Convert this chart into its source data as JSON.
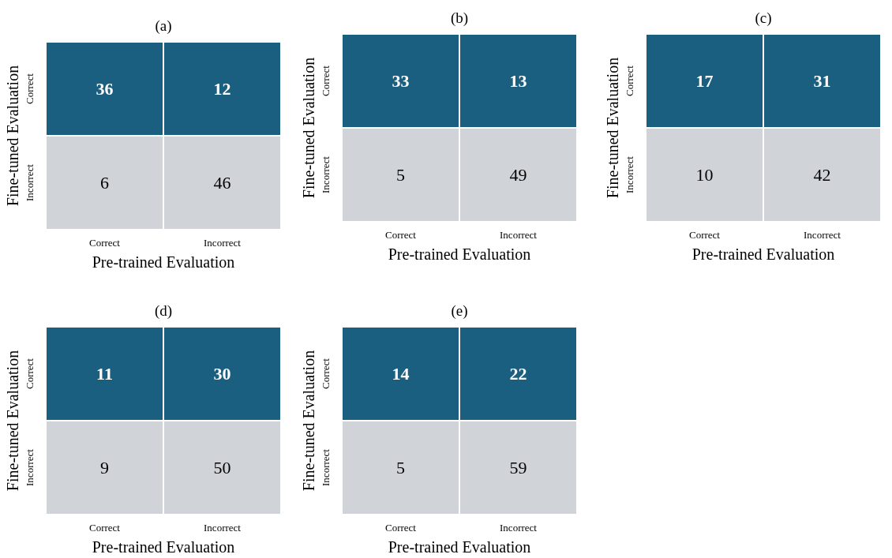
{
  "chart_data": [
    {
      "type": "heatmap",
      "title": "(a)",
      "xlabel": "Pre-trained Evaluation",
      "ylabel": "Fine-tuned Evaluation",
      "categories": [
        "Correct",
        "Incorrect"
      ],
      "y_categories": [
        "Correct",
        "Incorrect"
      ],
      "cells": [
        [
          36,
          12
        ],
        [
          6,
          46
        ]
      ],
      "colors": [
        "#1a5e80",
        "#d0d4d9"
      ],
      "data_labels": true
    },
    {
      "type": "heatmap",
      "title": "(b)",
      "xlabel": "Pre-trained Evaluation",
      "ylabel": "Fine-tuned Evaluation",
      "categories": [
        "Correct",
        "Incorrect"
      ],
      "y_categories": [
        "Correct",
        "Incorrect"
      ],
      "cells": [
        [
          33,
          13
        ],
        [
          5,
          49
        ]
      ],
      "colors": [
        "#1a5e80",
        "#d0d4d9"
      ],
      "data_labels": true
    },
    {
      "type": "heatmap",
      "title": "(c)",
      "xlabel": "Pre-trained Evaluation",
      "ylabel": "Fine-tuned Evaluation",
      "categories": [
        "Correct",
        "Incorrect"
      ],
      "y_categories": [
        "Correct",
        "Incorrect"
      ],
      "cells": [
        [
          17,
          31
        ],
        [
          10,
          42
        ]
      ],
      "colors": [
        "#1a5e80",
        "#d0d4d9"
      ],
      "data_labels": true
    },
    {
      "type": "heatmap",
      "title": "(d)",
      "xlabel": "Pre-trained Evaluation",
      "ylabel": "Fine-tuned Evaluation",
      "categories": [
        "Correct",
        "Incorrect"
      ],
      "y_categories": [
        "Correct",
        "Incorrect"
      ],
      "cells": [
        [
          11,
          30
        ],
        [
          9,
          50
        ]
      ],
      "colors": [
        "#1a5e80",
        "#d0d4d9"
      ],
      "data_labels": true
    },
    {
      "type": "heatmap",
      "title": "(e)",
      "xlabel": "Pre-trained Evaluation",
      "ylabel": "Fine-tuned Evaluation",
      "categories": [
        "Correct",
        "Incorrect"
      ],
      "y_categories": [
        "Correct",
        "Incorrect"
      ],
      "cells": [
        [
          14,
          22
        ],
        [
          5,
          59
        ]
      ],
      "colors": [
        "#1a5e80",
        "#d0d4d9"
      ],
      "data_labels": true
    }
  ]
}
